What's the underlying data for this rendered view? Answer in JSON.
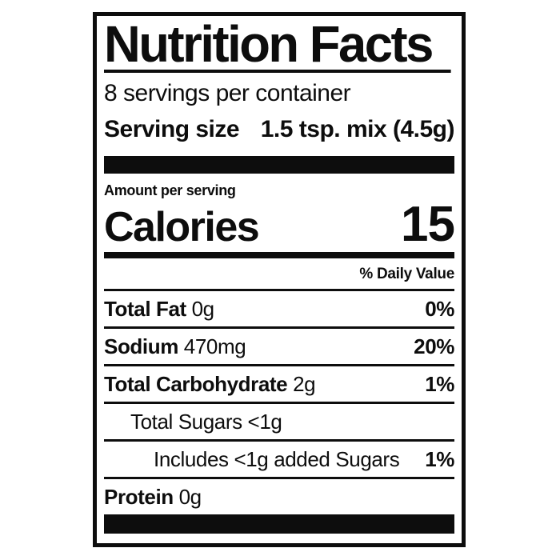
{
  "label": {
    "title": "Nutrition Facts",
    "servings_per_container": "8 servings per container",
    "serving_size_label": "Serving size",
    "serving_size_value": "1.5 tsp. mix (4.5g)",
    "amount_per_serving": "Amount per serving",
    "calories_label": "Calories",
    "calories_value": "15",
    "daily_value_header": "% Daily Value",
    "rows": [
      {
        "name": "Total Fat",
        "amount": "0g",
        "pct": "0%",
        "indent": 0
      },
      {
        "name": "Sodium",
        "amount": "470mg",
        "pct": "20%",
        "indent": 0
      },
      {
        "name": "Total Carbohydrate",
        "amount": "2g",
        "pct": "1%",
        "indent": 0
      },
      {
        "name": "",
        "amount": "Total Sugars <1g",
        "pct": "",
        "indent": 1
      },
      {
        "name": "",
        "amount": "Includes <1g added Sugars",
        "pct": "1%",
        "indent": 2
      },
      {
        "name": "Protein",
        "amount": "0g",
        "pct": "",
        "indent": 0
      }
    ],
    "colors": {
      "ink": "#0d0d0d",
      "background": "#ffffff"
    }
  }
}
